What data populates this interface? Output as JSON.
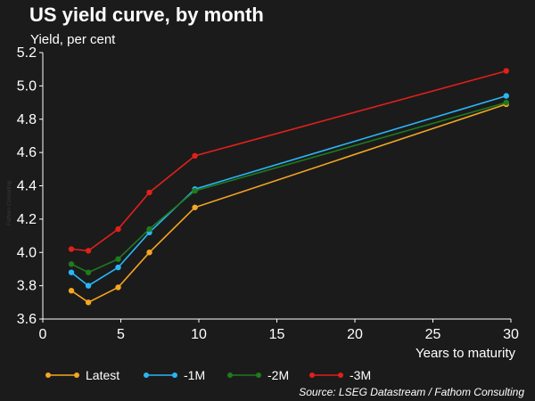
{
  "title": "US yield curve, by month",
  "subtitle": "Yield, per cent",
  "source": "Source: LSEG Datastream / Fathom Consulting",
  "watermark": "Fathom Consulting",
  "chart_data": {
    "type": "line",
    "xlabel": "Years to maturity",
    "ylabel": "Yield, per cent",
    "xlim": [
      0,
      30
    ],
    "ylim": [
      3.6,
      5.2
    ],
    "xticks": [
      0,
      5,
      10,
      15,
      20,
      25,
      30
    ],
    "yticks": [
      "3.6",
      "3.8",
      "4.0",
      "4.2",
      "4.4",
      "4.6",
      "4.8",
      "5.0",
      "5.2"
    ],
    "grid": false,
    "legend_position": "bottom",
    "x": [
      1.83,
      2.92,
      4.83,
      6.83,
      9.75,
      29.7
    ],
    "series": [
      {
        "name": "Latest",
        "color": "#f5a623",
        "values": [
          3.77,
          3.7,
          3.79,
          4.0,
          4.27,
          4.89
        ]
      },
      {
        "name": "-1M",
        "color": "#29b6f6",
        "values": [
          3.88,
          3.8,
          3.91,
          4.12,
          4.38,
          4.94
        ]
      },
      {
        "name": "-2M",
        "color": "#1e7b1e",
        "values": [
          3.93,
          3.88,
          3.96,
          4.14,
          4.37,
          4.9
        ]
      },
      {
        "name": "-3M",
        "color": "#e0201b",
        "values": [
          4.02,
          4.01,
          4.14,
          4.36,
          4.58,
          5.09
        ]
      }
    ]
  }
}
